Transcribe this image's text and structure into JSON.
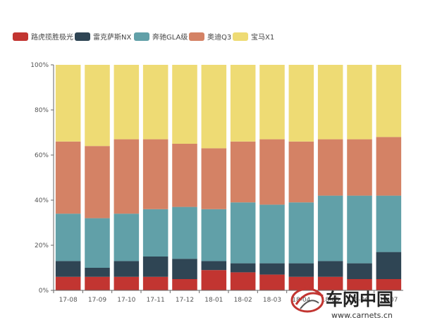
{
  "chart_data": {
    "type": "bar",
    "stacked": true,
    "percent": true,
    "categories": [
      "17-08",
      "17-09",
      "17-10",
      "17-11",
      "17-12",
      "18-01",
      "18-02",
      "18-03",
      "18-04",
      "18-05",
      "18-06",
      "18-07"
    ],
    "ylim": [
      0,
      100
    ],
    "yticks": [
      "0%",
      "20%",
      "40%",
      "60%",
      "80%",
      "100%"
    ],
    "grid": false,
    "legend_position": "top-left",
    "title": "",
    "xlabel": "",
    "ylabel": "",
    "series": [
      {
        "name": "路虎揽胜极光",
        "color": "#c23531",
        "values": [
          6,
          6,
          6,
          6,
          5,
          9,
          8,
          7,
          6,
          6,
          5,
          5
        ]
      },
      {
        "name": "雷克萨斯NX",
        "color": "#2f4554",
        "values": [
          7,
          4,
          7,
          9,
          9,
          4,
          4,
          5,
          6,
          7,
          7,
          12
        ]
      },
      {
        "name": "奔驰GLA级",
        "color": "#61a0a8",
        "values": [
          21,
          22,
          21,
          21,
          23,
          23,
          27,
          26,
          27,
          29,
          30,
          25
        ]
      },
      {
        "name": "奥迪Q3",
        "color": "#d48265",
        "values": [
          32,
          32,
          33,
          31,
          28,
          27,
          27,
          29,
          27,
          25,
          25,
          26
        ]
      },
      {
        "name": "宝马X1",
        "color": "#eedb74",
        "values": [
          34,
          36,
          33,
          33,
          35,
          37,
          34,
          33,
          34,
          33,
          33,
          32
        ]
      }
    ]
  },
  "watermark": {
    "brand": "车网中国",
    "url": "www.carnets.cn"
  }
}
